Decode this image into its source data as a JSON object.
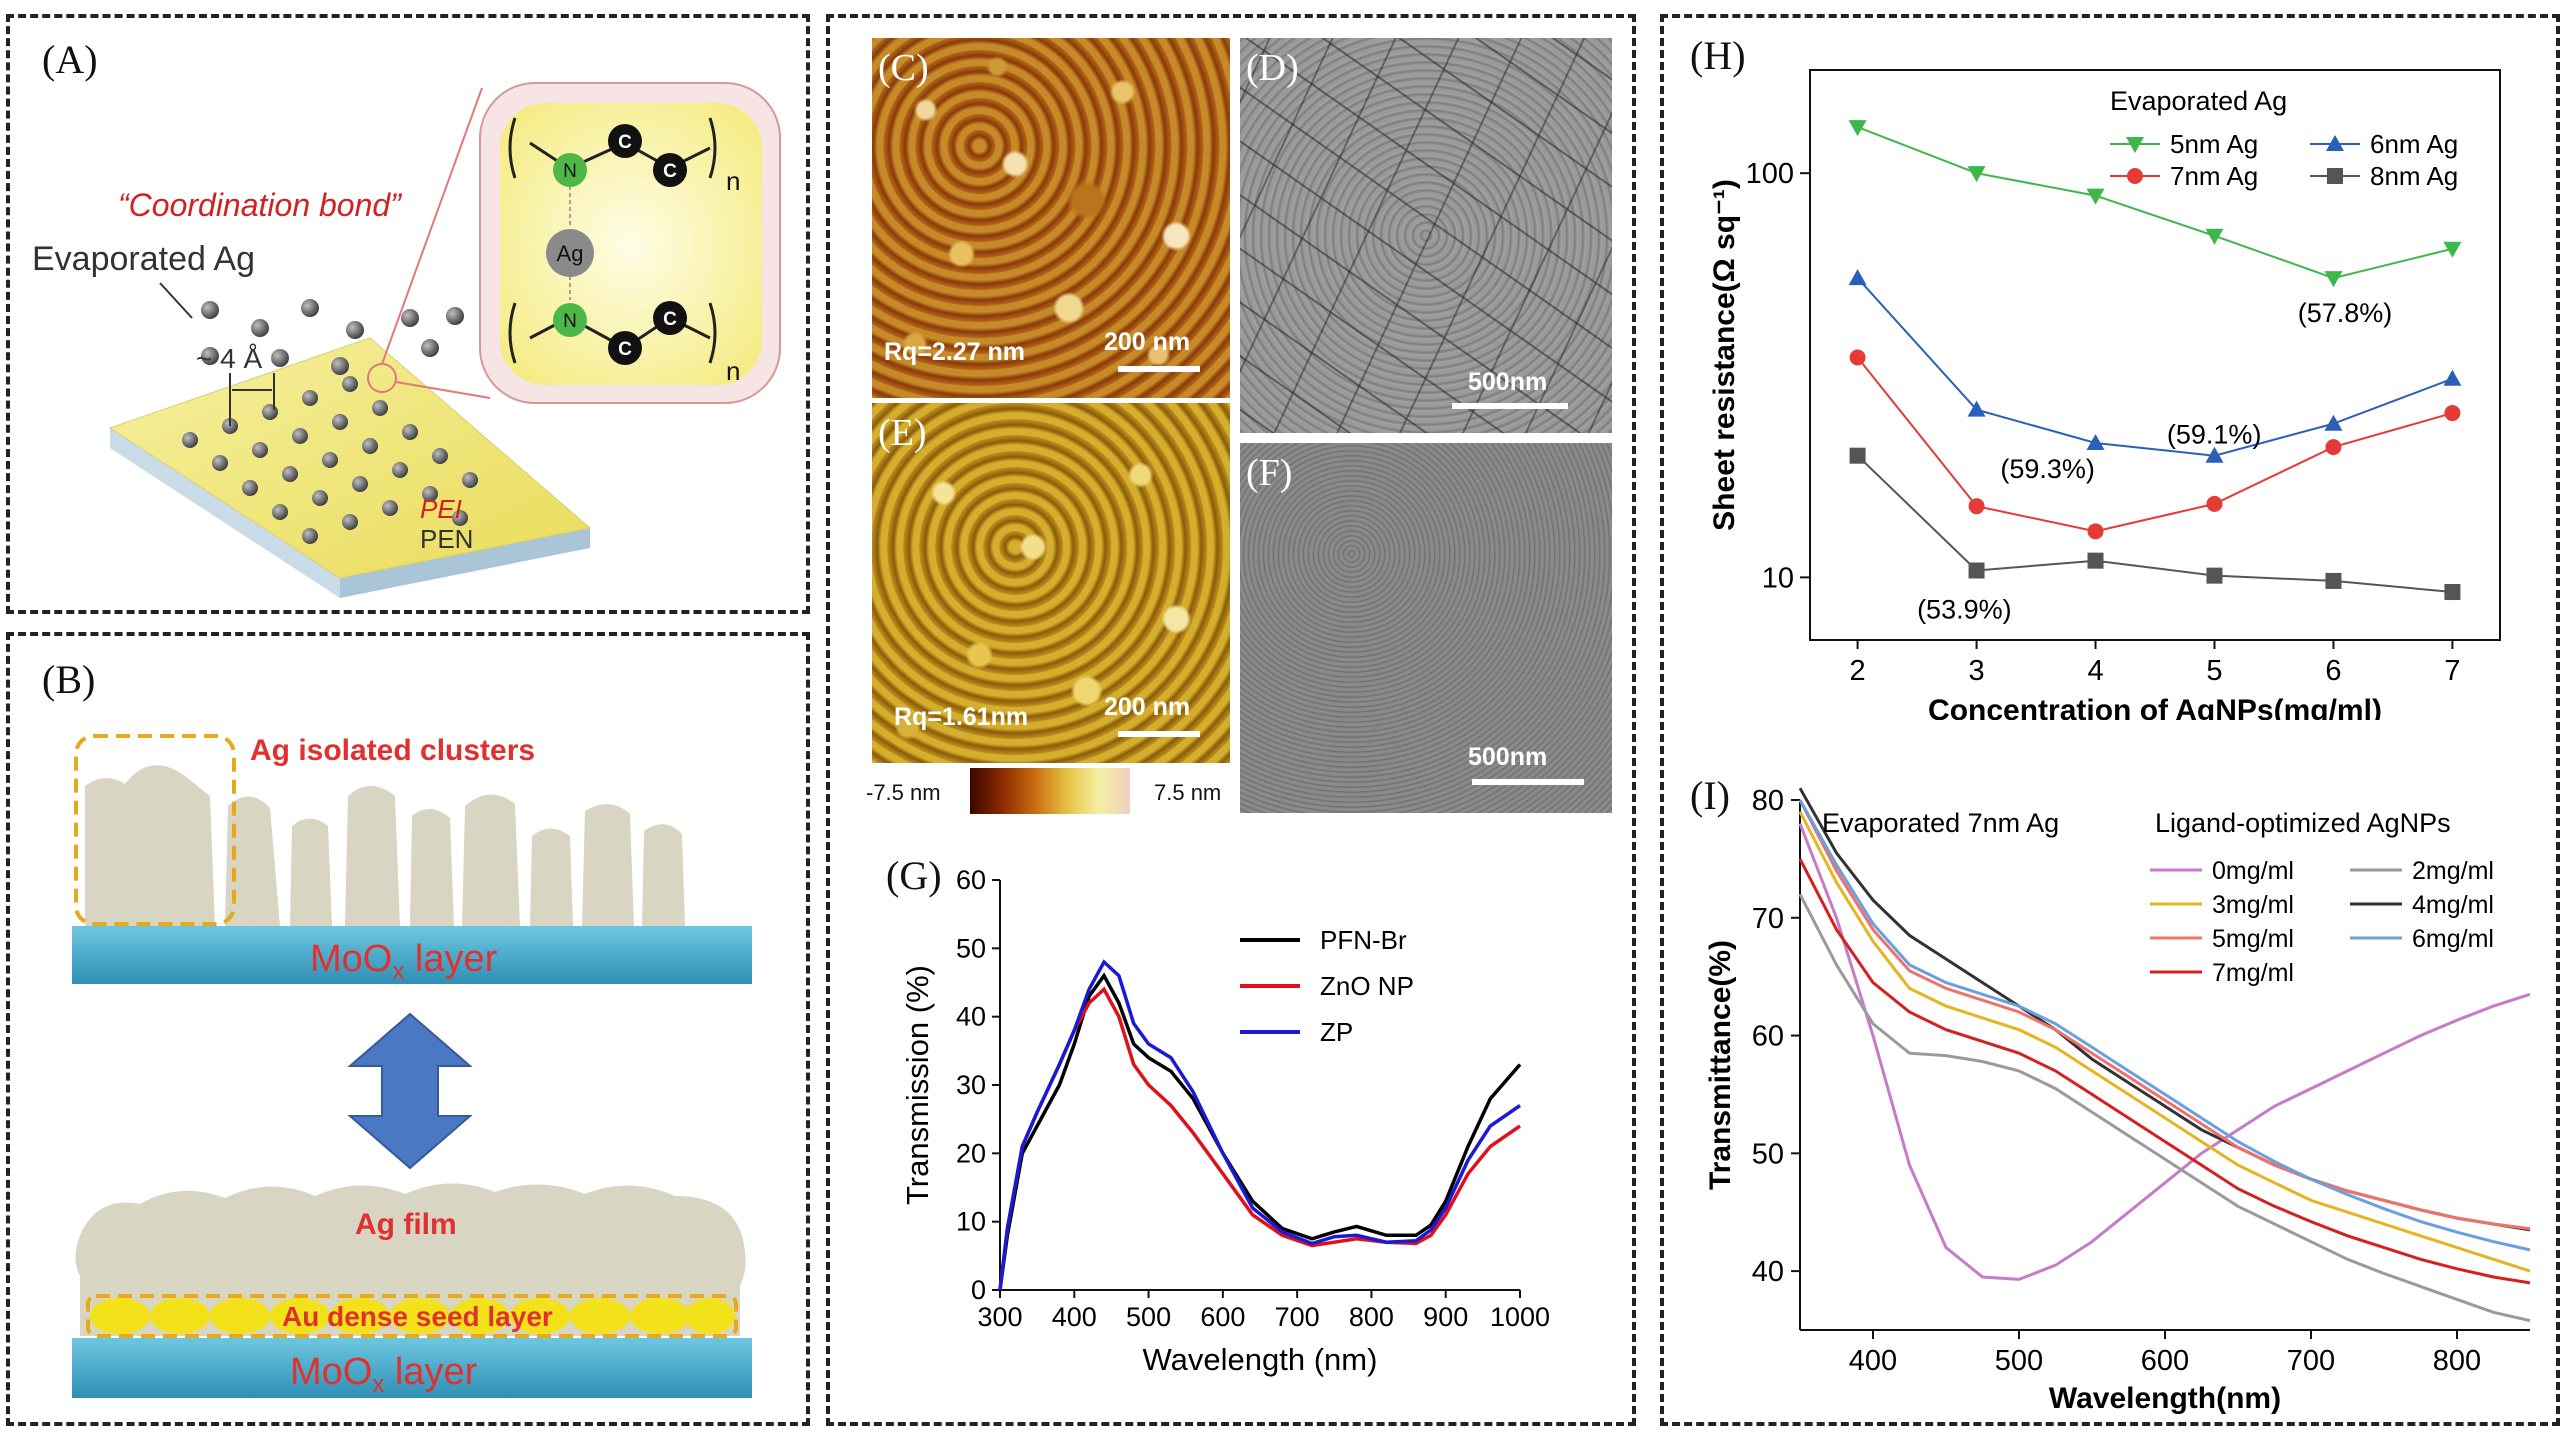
{
  "panels": {
    "A": {
      "label": "(A)",
      "coordination": "“Coordination bond”",
      "evaporated": "Evaporated Ag",
      "distance": "~ 4 Å",
      "pei": "PEI",
      "pen": "PEN",
      "atoms": {
        "N": "N",
        "C": "C",
        "Ag": "Ag",
        "n": "n"
      }
    },
    "B": {
      "label": "(B)",
      "clusters": "Ag isolated clusters",
      "moox": "MoO",
      "moox_sub": "x",
      "moox_suffix": " layer",
      "film": "Ag film",
      "seed": "Au dense seed layer"
    },
    "C": {
      "label": "(C)",
      "rq": "Rq=2.27 nm",
      "scale": "200 nm"
    },
    "D": {
      "label": "(D)",
      "scale": "500nm"
    },
    "E": {
      "label": "(E)",
      "rq": "Rq=1.61nm",
      "scale": "200 nm"
    },
    "F": {
      "label": "(F)",
      "scale": "500nm"
    },
    "colorbar": {
      "min": "-7.5 nm",
      "max": "7.5 nm"
    },
    "G": {
      "label": "(G)"
    },
    "H": {
      "label": "(H)"
    },
    "I": {
      "label": "(I)"
    }
  },
  "colors": {
    "pfn": "#000000",
    "zno": "#e0101a",
    "zp": "#1a1ad6",
    "h5": "#3cb84a",
    "h6": "#2c5fb8",
    "h7": "#e53a36",
    "h8": "#555555",
    "i0": "#c77bc6",
    "i2": "#9a9a9a",
    "i3": "#e6b422",
    "i4": "#333333",
    "i5": "#f0706a",
    "i6": "#6a9fe0",
    "i7": "#d62020"
  },
  "chart_data": [
    {
      "id": "G",
      "type": "line",
      "title": "",
      "xlabel": "Wavelength (nm)",
      "ylabel": "Transmission (%)",
      "xlim": [
        300,
        1000
      ],
      "ylim": [
        0,
        60
      ],
      "xticks": [
        300,
        400,
        500,
        600,
        700,
        800,
        900,
        1000
      ],
      "yticks": [
        0,
        10,
        20,
        30,
        40,
        50,
        60
      ],
      "legend": "top-right",
      "series": [
        {
          "name": "PFN-Br",
          "color": "#000000",
          "x": [
            300,
            310,
            330,
            350,
            380,
            400,
            420,
            440,
            460,
            480,
            500,
            530,
            560,
            600,
            640,
            680,
            720,
            750,
            780,
            820,
            860,
            880,
            900,
            930,
            960,
            1000
          ],
          "y": [
            0,
            8,
            20,
            24,
            30,
            36,
            43,
            46,
            42,
            36,
            34,
            32,
            28,
            20,
            13,
            9,
            7.5,
            8.5,
            9.3,
            8,
            8,
            9.5,
            13,
            21,
            28,
            33
          ]
        },
        {
          "name": "ZnO NP",
          "color": "#e0101a",
          "x": [
            300,
            310,
            330,
            350,
            380,
            400,
            420,
            440,
            460,
            480,
            500,
            530,
            560,
            600,
            640,
            680,
            720,
            750,
            780,
            820,
            860,
            880,
            900,
            930,
            960,
            1000
          ],
          "y": [
            0,
            9,
            21,
            26,
            33,
            38,
            42,
            44,
            40,
            33,
            30,
            27,
            23,
            17,
            11,
            8,
            6.5,
            7,
            7.5,
            7,
            6.8,
            8,
            11,
            17,
            21,
            24
          ]
        },
        {
          "name": "ZP",
          "color": "#1a1ad6",
          "x": [
            300,
            310,
            330,
            350,
            380,
            400,
            420,
            440,
            460,
            480,
            500,
            530,
            560,
            600,
            640,
            680,
            720,
            750,
            780,
            820,
            860,
            880,
            900,
            930,
            960,
            1000
          ],
          "y": [
            0,
            9,
            21,
            26,
            33,
            38,
            44,
            48,
            46,
            39,
            36,
            34,
            29,
            20,
            12,
            8.5,
            6.8,
            7.8,
            8,
            7,
            7.2,
            8.8,
            12,
            19,
            24,
            27
          ]
        }
      ]
    },
    {
      "id": "H",
      "type": "line",
      "title": "",
      "xlabel": "Concentration of AgNPs(mg/ml)",
      "ylabel": "Sheet resistance(Ω sq⁻¹)",
      "yscale": "log",
      "xlim": [
        1.6,
        7.4
      ],
      "ylim": [
        7,
        180
      ],
      "xticks": [
        2,
        3,
        4,
        5,
        6,
        7
      ],
      "ytick_labels": [
        "10",
        "100"
      ],
      "legend_title": "Evaporated Ag",
      "legend": "top-right",
      "categories": [
        2,
        3,
        4,
        5,
        6,
        7
      ],
      "series": [
        {
          "name": "5nm Ag",
          "marker": "triangle-down",
          "color": "#3cb84a",
          "values": [
            130,
            100,
            88,
            70,
            55,
            65
          ]
        },
        {
          "name": "6nm Ag",
          "marker": "triangle-up",
          "color": "#2c5fb8",
          "values": [
            55,
            26,
            21.5,
            20,
            24,
            31
          ]
        },
        {
          "name": "7nm Ag",
          "marker": "circle",
          "color": "#e53a36",
          "values": [
            35,
            15,
            13,
            15.2,
            21,
            25.5
          ]
        },
        {
          "name": "8nm Ag",
          "marker": "square",
          "color": "#555555",
          "values": [
            20,
            10.4,
            11,
            10.1,
            9.8,
            9.2
          ]
        }
      ],
      "annotations": [
        "(57.8%)",
        "(59.1%)",
        "(59.3%)",
        "(53.9%)"
      ]
    },
    {
      "id": "I",
      "type": "line",
      "title": "",
      "xlabel": "Wavelength(nm)",
      "ylabel": "Transmittance(%)",
      "xlim": [
        350,
        850
      ],
      "ylim": [
        35,
        80
      ],
      "xticks": [
        400,
        500,
        600,
        700,
        800
      ],
      "yticks": [
        40,
        50,
        60,
        70,
        80
      ],
      "legend_title": "Ligand-optimized AgNPs",
      "annotation": "Evaporated 7nm Ag",
      "legend": "top-right",
      "x": [
        350,
        375,
        400,
        425,
        450,
        475,
        500,
        525,
        550,
        575,
        600,
        625,
        650,
        675,
        700,
        725,
        750,
        775,
        800,
        825,
        850
      ],
      "series": [
        {
          "name": "0mg/ml",
          "color": "#c77bc6",
          "values": [
            78,
            70,
            60,
            49,
            42,
            39.5,
            39.3,
            40.5,
            42.5,
            45,
            47.5,
            50,
            52,
            54,
            55.5,
            57,
            58.5,
            60,
            61.3,
            62.5,
            63.5
          ]
        },
        {
          "name": "2mg/ml",
          "color": "#9a9a9a",
          "values": [
            72,
            66,
            61,
            58.5,
            58.3,
            57.8,
            57,
            55.5,
            53.5,
            51.5,
            49.5,
            47.5,
            45.5,
            44,
            42.5,
            41,
            39.8,
            38.7,
            37.6,
            36.5,
            35.8
          ]
        },
        {
          "name": "3mg/ml",
          "color": "#e6b422",
          "values": [
            79,
            73,
            68,
            64,
            62.5,
            61.5,
            60.5,
            59,
            57,
            55,
            53,
            51,
            49,
            47.5,
            46,
            45,
            44,
            43,
            42,
            41,
            40
          ]
        },
        {
          "name": "4mg/ml",
          "color": "#333333",
          "values": [
            81,
            75.5,
            71.5,
            68.5,
            66.5,
            64.5,
            62.5,
            60.5,
            58,
            56,
            54,
            52,
            50.5,
            49,
            47.8,
            46.8,
            46,
            45.2,
            44.5,
            44,
            43.5
          ]
        },
        {
          "name": "5mg/ml",
          "color": "#f0706a",
          "values": [
            80,
            74,
            69,
            65.5,
            64,
            63,
            62,
            60.5,
            58.5,
            56.5,
            54.5,
            52.5,
            50.5,
            49,
            47.8,
            46.8,
            46,
            45.2,
            44.5,
            44,
            43.6
          ]
        },
        {
          "name": "6mg/ml",
          "color": "#6a9fe0",
          "values": [
            80,
            74.5,
            69.5,
            66,
            64.5,
            63.5,
            62.5,
            61,
            59,
            57,
            55,
            53,
            51,
            49.3,
            47.8,
            46.5,
            45.3,
            44.2,
            43.3,
            42.5,
            41.8
          ]
        },
        {
          "name": "7mg/ml",
          "color": "#d62020",
          "values": [
            75,
            69,
            64.5,
            62,
            60.5,
            59.5,
            58.5,
            57,
            55,
            53,
            51,
            49,
            47,
            45.5,
            44.2,
            43,
            42,
            41,
            40.2,
            39.5,
            39
          ]
        }
      ]
    }
  ]
}
